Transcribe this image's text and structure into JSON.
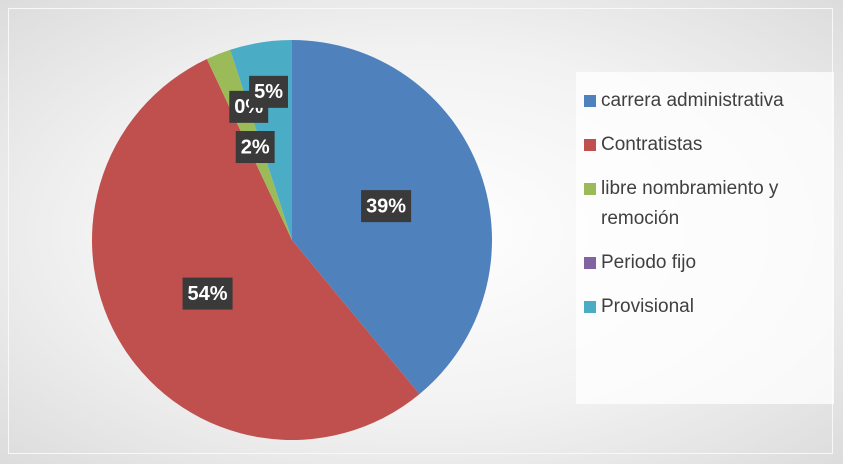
{
  "chart_data": {
    "type": "pie",
    "categories": [
      "carrera administrativa",
      "Contratistas",
      "libre nombramiento y remoción",
      "Periodo fijo",
      "Provisional"
    ],
    "values": [
      39,
      54,
      2,
      0,
      5
    ],
    "value_labels": [
      "39%",
      "54%",
      "2%",
      "0%",
      "5%"
    ],
    "colors": [
      "#4f81bd",
      "#c0504d",
      "#9bbb59",
      "#8064a2",
      "#4bacc6"
    ],
    "legend": "right"
  }
}
